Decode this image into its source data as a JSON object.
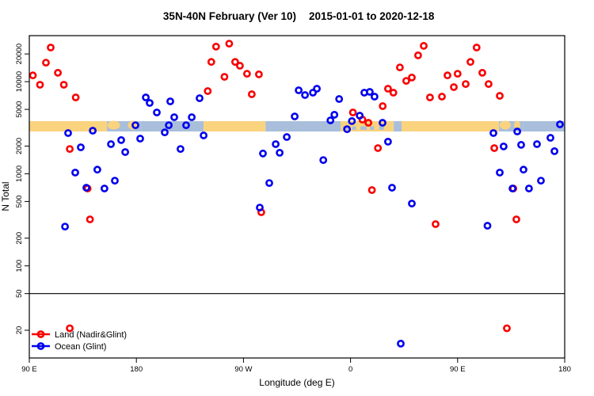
{
  "chart_data": {
    "type": "scatter",
    "title": "35N-40N February (Ver 10)  2015-01-01 to 2020-12-18",
    "title_parts": [
      "35N-40N February (Ver 10)",
      "2015-01-01 to 2020-12-18"
    ],
    "xlabel": "Longitude (deg E)",
    "ylabel": "N Total",
    "x_axis": {
      "domain": [
        90,
        540
      ],
      "ticks": [
        {
          "value": 90,
          "label": "90 E"
        },
        {
          "value": 180,
          "label": "180"
        },
        {
          "value": 270,
          "label": "90 W"
        },
        {
          "value": 360,
          "label": "0"
        },
        {
          "value": 450,
          "label": "90 E"
        },
        {
          "value": 540,
          "label": "180"
        }
      ]
    },
    "y_axis": {
      "scale": "log",
      "domain": [
        10,
        31623
      ],
      "ticks": [
        20,
        50,
        100,
        200,
        500,
        1000,
        2000,
        5000,
        10000,
        20000
      ]
    },
    "reference_line_n": 50,
    "grid": "off",
    "legend_position": "bottom-left",
    "surface_band": {
      "colors": {
        "land": "#FAD37E",
        "ocean": "#A9BEDB"
      },
      "n_level": 3300,
      "segments": [
        {
          "from": 90,
          "to": 155.3,
          "surface": "land"
        },
        {
          "from": 155.3,
          "to": 184,
          "surface": "ocean"
        },
        {
          "from": 184,
          "to": 236.5,
          "surface": "ocean"
        },
        {
          "from": 236.5,
          "to": 288.5,
          "surface": "land"
        },
        {
          "from": 288.5,
          "to": 351.6,
          "surface": "ocean"
        },
        {
          "from": 351.6,
          "to": 396.3,
          "surface": "land"
        },
        {
          "from": 396.3,
          "to": 402.9,
          "surface": "ocean"
        },
        {
          "from": 402.9,
          "to": 484.8,
          "surface": "land"
        },
        {
          "from": 484.8,
          "to": 504.8,
          "surface": "ocean"
        },
        {
          "from": 504.8,
          "to": 540,
          "surface": "ocean"
        }
      ],
      "island_patches": [
        {
          "lon": 161,
          "rx": 8
        },
        {
          "lon": 177.5,
          "rx": 7
        },
        {
          "lon": 490,
          "rx": 7
        },
        {
          "lon": 500,
          "rx": 4
        }
      ],
      "sea_patches": [
        {
          "lon": 356,
          "w": 7
        },
        {
          "lon": 363,
          "w": 5
        },
        {
          "lon": 371,
          "w": 8
        },
        {
          "lon": 378,
          "w": 5
        },
        {
          "lon": 386,
          "w": 6
        }
      ]
    },
    "series": [
      {
        "name": "Land (Nadir&Glint)",
        "color": "#F80000",
        "points": [
          [
            93,
            11700
          ],
          [
            99,
            9260
          ],
          [
            104,
            16100
          ],
          [
            108,
            23500
          ],
          [
            114,
            12500
          ],
          [
            119,
            9260
          ],
          [
            129,
            6750
          ],
          [
            124,
            1860
          ],
          [
            139,
            692
          ],
          [
            141,
            320
          ],
          [
            124,
            21
          ],
          [
            240,
            7900
          ],
          [
            243,
            16400
          ],
          [
            247,
            24000
          ],
          [
            254,
            11300
          ],
          [
            258,
            25900
          ],
          [
            263,
            16400
          ],
          [
            267,
            14900
          ],
          [
            273,
            12200
          ],
          [
            277,
            7310
          ],
          [
            283,
            12000
          ],
          [
            285,
            382
          ],
          [
            362,
            4630
          ],
          [
            370,
            3880
          ],
          [
            375,
            3580
          ],
          [
            383,
            1900
          ],
          [
            378,
            665
          ],
          [
            387,
            5430
          ],
          [
            391.5,
            8390
          ],
          [
            396,
            7600
          ],
          [
            401.5,
            14300
          ],
          [
            406.8,
            10200
          ],
          [
            411.5,
            11100
          ],
          [
            416.8,
            19300
          ],
          [
            421.5,
            24500
          ],
          [
            426.8,
            6750
          ],
          [
            431.5,
            284
          ],
          [
            436.8,
            6890
          ],
          [
            441.5,
            11700
          ],
          [
            446.8,
            8730
          ],
          [
            450,
            12200
          ],
          [
            456.8,
            9440
          ],
          [
            460.8,
            16400
          ],
          [
            466,
            23500
          ],
          [
            470.8,
            12500
          ],
          [
            476,
            9440
          ],
          [
            480.8,
            1900
          ],
          [
            485.4,
            7020
          ],
          [
            491.4,
            21
          ],
          [
            496.8,
            692
          ],
          [
            499.4,
            320
          ]
        ]
      },
      {
        "name": "Ocean (Glint)",
        "color": "#0000EE",
        "points": [
          [
            120,
            267
          ],
          [
            122.6,
            2770
          ],
          [
            128.6,
            1030
          ],
          [
            133.3,
            1940
          ],
          [
            137.9,
            706
          ],
          [
            143.3,
            2940
          ],
          [
            147.2,
            1110
          ],
          [
            153.2,
            692
          ],
          [
            158.6,
            2100
          ],
          [
            161.9,
            843
          ],
          [
            167.2,
            2320
          ],
          [
            170.6,
            1720
          ],
          [
            179.2,
            3370
          ],
          [
            183.2,
            2410
          ],
          [
            187.9,
            6750
          ],
          [
            191.2,
            5870
          ],
          [
            197.2,
            4630
          ],
          [
            203.8,
            2820
          ],
          [
            207.2,
            3370
          ],
          [
            208.5,
            6110
          ],
          [
            211.8,
            4110
          ],
          [
            217.1,
            1860
          ],
          [
            221.8,
            3370
          ],
          [
            226.5,
            4110
          ],
          [
            233.1,
            6620
          ],
          [
            236.5,
            2610
          ],
          [
            283.7,
            430
          ],
          [
            286.4,
            1660
          ],
          [
            291.7,
            794
          ],
          [
            297.1,
            2100
          ],
          [
            300.4,
            1690
          ],
          [
            306.4,
            2510
          ],
          [
            313.1,
            4200
          ],
          [
            316.4,
            8070
          ],
          [
            321.7,
            7160
          ],
          [
            328.4,
            7600
          ],
          [
            331.7,
            8390
          ],
          [
            337.1,
            1410
          ],
          [
            343.1,
            3800
          ],
          [
            346.4,
            4370
          ],
          [
            350.4,
            6490
          ],
          [
            357.1,
            3050
          ],
          [
            361.1,
            3730
          ],
          [
            367.7,
            4280
          ],
          [
            371.6,
            7600
          ],
          [
            376.2,
            7750
          ],
          [
            380.2,
            6890
          ],
          [
            386.9,
            3580
          ],
          [
            391.5,
            2230
          ],
          [
            394.9,
            706
          ],
          [
            402.2,
            14.3
          ],
          [
            411.5,
            475
          ],
          [
            475.1,
            273
          ],
          [
            480.1,
            2770
          ],
          [
            485.4,
            1030
          ],
          [
            488.7,
            1980
          ],
          [
            496.1,
            692
          ],
          [
            500.1,
            2880
          ],
          [
            503.4,
            2060
          ],
          [
            505.4,
            1110
          ],
          [
            510,
            692
          ],
          [
            516.7,
            2100
          ],
          [
            520,
            843
          ],
          [
            528,
            2460
          ],
          [
            531.4,
            1760
          ],
          [
            536,
            3440
          ]
        ]
      }
    ]
  }
}
